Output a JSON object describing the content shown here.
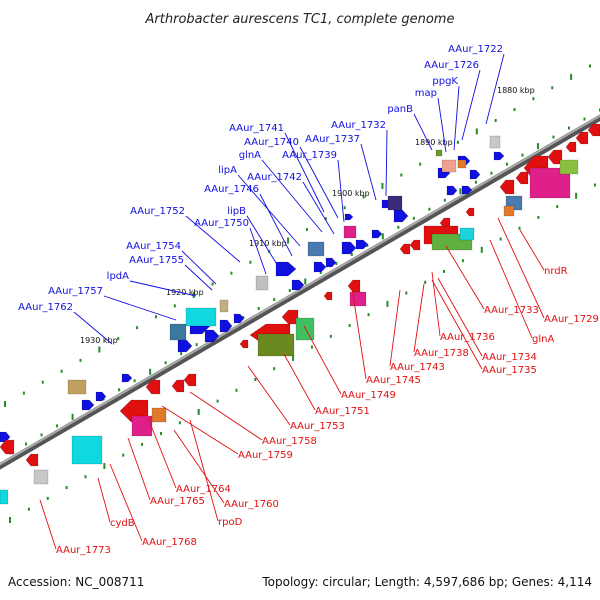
{
  "title": "Arthrobacter aurescens TC1, complete genome",
  "footer": {
    "accession": "Accession: NC_008711",
    "summary": "Topology: circular; Length: 4,597,686 bp; Genes: 4,114"
  },
  "colors": {
    "forward": "#1010e0",
    "reverse": "#e01010",
    "backbone": "#6e6e6e",
    "tick": "#2a8a2a"
  },
  "kbp_marks": [
    "1880 kbp",
    "1890 kbp",
    "1900 kbp",
    "1910 kbp",
    "1920 kbp",
    "1930 kbp"
  ],
  "forward_labels": [
    "AAur_1722",
    "AAur_1726",
    "ppgK",
    "map",
    "panB",
    "AAur_1732",
    "AAur_1737",
    "AAur_1741",
    "AAur_1740",
    "AAur_1739",
    "glnA",
    "lipA",
    "AAur_1742",
    "AAur_1746",
    "lipB",
    "AAur_1752",
    "AAur_1750",
    "AAur_1754",
    "AAur_1755",
    "lpdA",
    "AAur_1757",
    "AAur_1762"
  ],
  "reverse_labels": [
    "nrdR",
    "AAur_1729",
    "glnA",
    "AAur_1733",
    "AAur_1736",
    "AAur_1734",
    "AAur_1735",
    "AAur_1738",
    "AAur_1743",
    "AAur_1745",
    "AAur_1749",
    "AAur_1751",
    "AAur_1753",
    "AAur_1758",
    "AAur_1759",
    "AAur_1764",
    "AAur_1765",
    "AAur_1760",
    "rpoD",
    "cydB",
    "AAur_1768",
    "AAur_1773"
  ]
}
